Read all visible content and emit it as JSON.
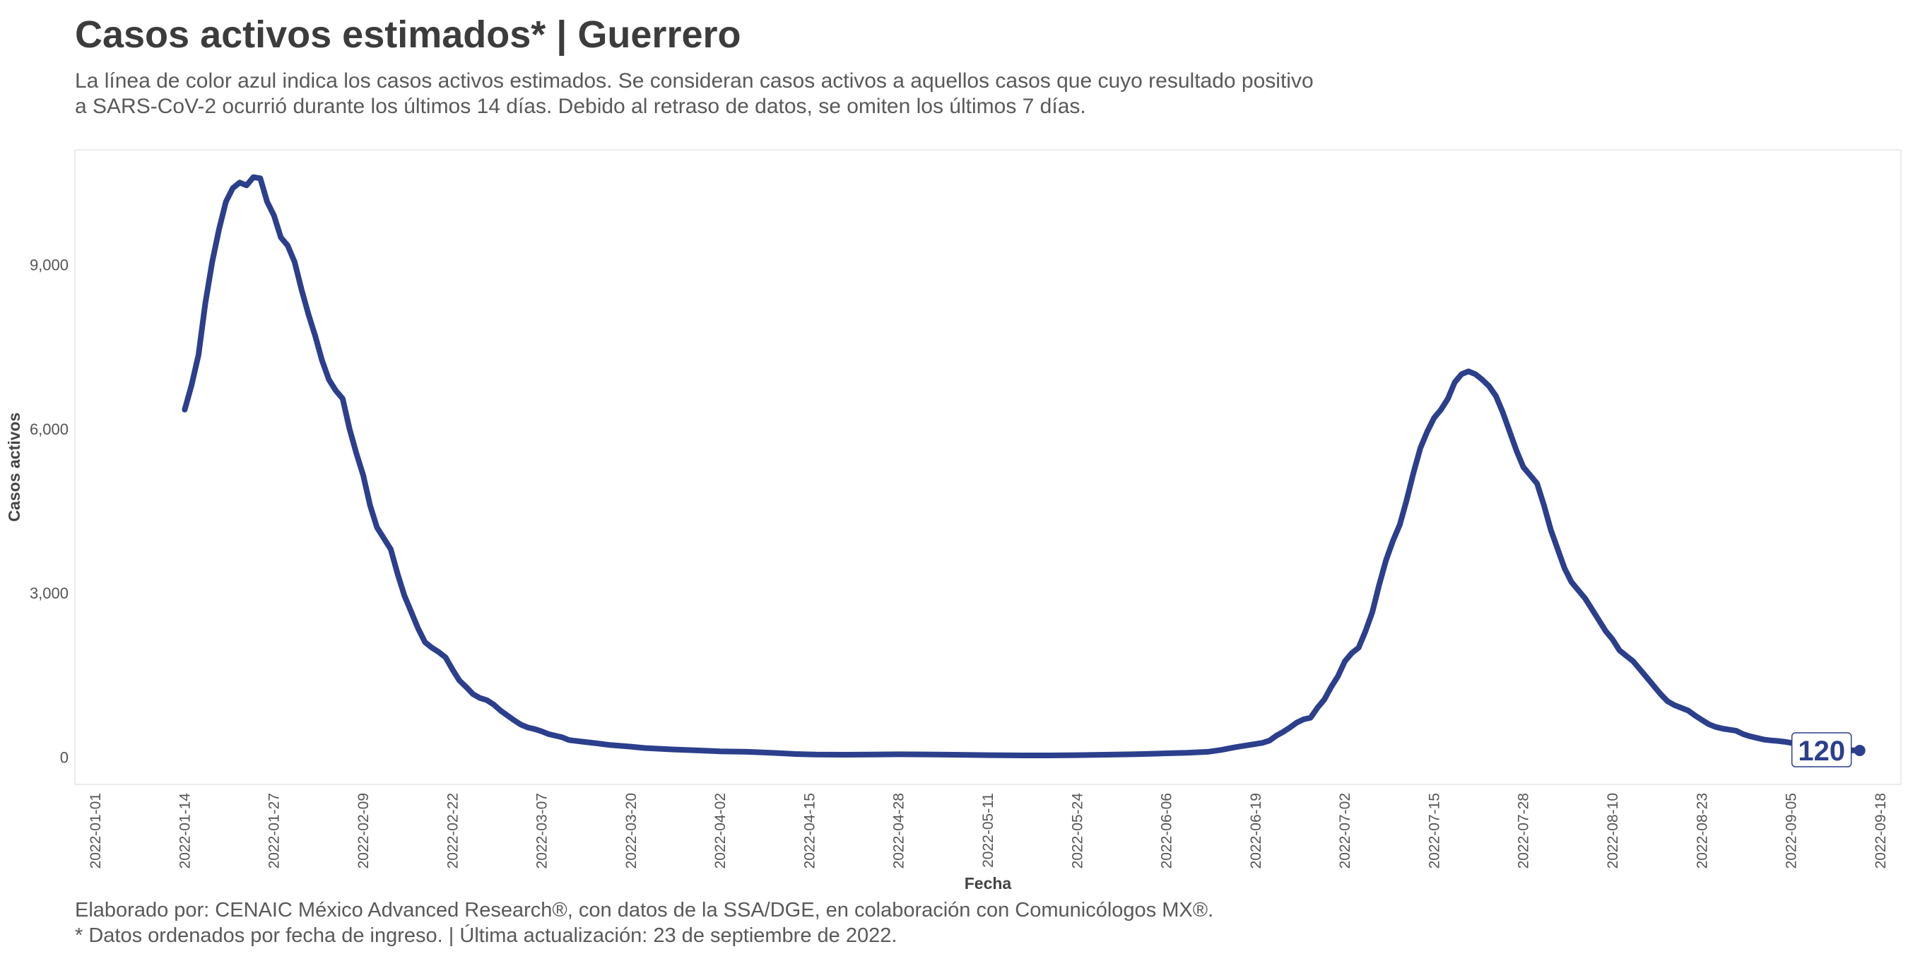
{
  "title": "Casos activos estimados* | Guerrero",
  "subtitle": [
    "La línea de color azul indica los casos activos estimados. Se consideran casos activos a aquellos casos que cuyo resultado positivo",
    "a SARS-CoV-2 ocurrió durante los últimos 14 días. Debido al retraso de datos, se omiten los últimos 7 días."
  ],
  "caption": [
    "Elaborado por: CENAIC México Advanced Research®, con datos de la SSA/DGE, en colaboración con Comunicólogos MX®.",
    "* Datos ordenados por fecha de ingreso. | Última actualización: 23 de septiembre de 2022."
  ],
  "chart_data": {
    "type": "line",
    "xlabel": "Fecha",
    "ylabel": "Casos activos",
    "x_ticks": [
      "2022-01-01",
      "2022-01-14",
      "2022-01-27",
      "2022-02-09",
      "2022-02-22",
      "2022-03-07",
      "2022-03-20",
      "2022-04-02",
      "2022-04-15",
      "2022-04-28",
      "2022-05-11",
      "2022-05-24",
      "2022-06-06",
      "2022-06-19",
      "2022-07-02",
      "2022-07-15",
      "2022-07-28",
      "2022-08-10",
      "2022-08-23",
      "2022-09-05",
      "2022-09-18"
    ],
    "y_ticks": [
      0,
      3000,
      6000,
      9000
    ],
    "y_tick_labels": [
      "0",
      "3,000",
      "6,000",
      "9,000"
    ],
    "xlim": [
      "2021-12-29",
      "2022-09-21"
    ],
    "ylim": [
      -500,
      11100
    ],
    "grid": false,
    "line_color": "#2b3f8c",
    "last_value_label": "120",
    "series": [
      {
        "points": [
          [
            "2022-01-14",
            6350
          ],
          [
            "2022-01-15",
            6800
          ],
          [
            "2022-01-16",
            7350
          ],
          [
            "2022-01-17",
            8300
          ],
          [
            "2022-01-18",
            9050
          ],
          [
            "2022-01-19",
            9650
          ],
          [
            "2022-01-20",
            10150
          ],
          [
            "2022-01-21",
            10400
          ],
          [
            "2022-01-22",
            10500
          ],
          [
            "2022-01-23",
            10450
          ],
          [
            "2022-01-24",
            10600
          ],
          [
            "2022-01-25",
            10580
          ],
          [
            "2022-01-26",
            10150
          ],
          [
            "2022-01-27",
            9900
          ],
          [
            "2022-01-28",
            9500
          ],
          [
            "2022-01-29",
            9350
          ],
          [
            "2022-01-30",
            9050
          ],
          [
            "2022-01-31",
            8550
          ],
          [
            "2022-02-01",
            8100
          ],
          [
            "2022-02-02",
            7700
          ],
          [
            "2022-02-03",
            7250
          ],
          [
            "2022-02-04",
            6900
          ],
          [
            "2022-02-05",
            6700
          ],
          [
            "2022-02-06",
            6550
          ],
          [
            "2022-02-07",
            6000
          ],
          [
            "2022-02-08",
            5550
          ],
          [
            "2022-02-09",
            5150
          ],
          [
            "2022-02-10",
            4600
          ],
          [
            "2022-02-11",
            4200
          ],
          [
            "2022-02-12",
            4000
          ],
          [
            "2022-02-13",
            3800
          ],
          [
            "2022-02-14",
            3350
          ],
          [
            "2022-02-15",
            2950
          ],
          [
            "2022-02-16",
            2650
          ],
          [
            "2022-02-17",
            2350
          ],
          [
            "2022-02-18",
            2100
          ],
          [
            "2022-02-19",
            2000
          ],
          [
            "2022-02-20",
            1920
          ],
          [
            "2022-02-21",
            1820
          ],
          [
            "2022-02-22",
            1600
          ],
          [
            "2022-02-23",
            1400
          ],
          [
            "2022-02-24",
            1280
          ],
          [
            "2022-02-25",
            1150
          ],
          [
            "2022-02-26",
            1080
          ],
          [
            "2022-02-27",
            1040
          ],
          [
            "2022-02-28",
            960
          ],
          [
            "2022-03-01",
            850
          ],
          [
            "2022-03-02",
            760
          ],
          [
            "2022-03-03",
            670
          ],
          [
            "2022-03-04",
            590
          ],
          [
            "2022-03-05",
            540
          ],
          [
            "2022-03-06",
            510
          ],
          [
            "2022-03-07",
            470
          ],
          [
            "2022-03-08",
            420
          ],
          [
            "2022-03-09",
            390
          ],
          [
            "2022-03-10",
            360
          ],
          [
            "2022-03-11",
            310
          ],
          [
            "2022-03-13",
            280
          ],
          [
            "2022-03-15",
            250
          ],
          [
            "2022-03-17",
            220
          ],
          [
            "2022-03-20",
            190
          ],
          [
            "2022-03-22",
            165
          ],
          [
            "2022-03-26",
            140
          ],
          [
            "2022-03-30",
            120
          ],
          [
            "2022-04-02",
            105
          ],
          [
            "2022-04-06",
            95
          ],
          [
            "2022-04-10",
            75
          ],
          [
            "2022-04-13",
            55
          ],
          [
            "2022-04-16",
            45
          ],
          [
            "2022-04-20",
            42
          ],
          [
            "2022-04-24",
            45
          ],
          [
            "2022-04-28",
            50
          ],
          [
            "2022-05-02",
            48
          ],
          [
            "2022-05-06",
            42
          ],
          [
            "2022-05-11",
            35
          ],
          [
            "2022-05-16",
            30
          ],
          [
            "2022-05-20",
            30
          ],
          [
            "2022-05-24",
            35
          ],
          [
            "2022-05-28",
            42
          ],
          [
            "2022-06-01",
            50
          ],
          [
            "2022-06-04",
            60
          ],
          [
            "2022-06-06",
            68
          ],
          [
            "2022-06-09",
            78
          ],
          [
            "2022-06-12",
            95
          ],
          [
            "2022-06-14",
            130
          ],
          [
            "2022-06-16",
            180
          ],
          [
            "2022-06-18",
            220
          ],
          [
            "2022-06-20",
            260
          ],
          [
            "2022-06-21",
            300
          ],
          [
            "2022-06-22",
            390
          ],
          [
            "2022-06-23",
            460
          ],
          [
            "2022-06-24",
            540
          ],
          [
            "2022-06-25",
            630
          ],
          [
            "2022-06-26",
            690
          ],
          [
            "2022-06-27",
            720
          ],
          [
            "2022-06-28",
            900
          ],
          [
            "2022-06-29",
            1050
          ],
          [
            "2022-06-30",
            1280
          ],
          [
            "2022-07-01",
            1480
          ],
          [
            "2022-07-02",
            1750
          ],
          [
            "2022-07-03",
            1900
          ],
          [
            "2022-07-04",
            2000
          ],
          [
            "2022-07-05",
            2300
          ],
          [
            "2022-07-06",
            2650
          ],
          [
            "2022-07-07",
            3150
          ],
          [
            "2022-07-08",
            3600
          ],
          [
            "2022-07-09",
            3950
          ],
          [
            "2022-07-10",
            4250
          ],
          [
            "2022-07-11",
            4700
          ],
          [
            "2022-07-12",
            5200
          ],
          [
            "2022-07-13",
            5650
          ],
          [
            "2022-07-14",
            5950
          ],
          [
            "2022-07-15",
            6200
          ],
          [
            "2022-07-16",
            6350
          ],
          [
            "2022-07-17",
            6550
          ],
          [
            "2022-07-18",
            6850
          ],
          [
            "2022-07-19",
            7000
          ],
          [
            "2022-07-20",
            7050
          ],
          [
            "2022-07-21",
            7000
          ],
          [
            "2022-07-22",
            6900
          ],
          [
            "2022-07-23",
            6780
          ],
          [
            "2022-07-24",
            6600
          ],
          [
            "2022-07-25",
            6300
          ],
          [
            "2022-07-26",
            5950
          ],
          [
            "2022-07-27",
            5600
          ],
          [
            "2022-07-28",
            5300
          ],
          [
            "2022-07-29",
            5150
          ],
          [
            "2022-07-30",
            5000
          ],
          [
            "2022-07-31",
            4600
          ],
          [
            "2022-08-01",
            4150
          ],
          [
            "2022-08-02",
            3800
          ],
          [
            "2022-08-03",
            3450
          ],
          [
            "2022-08-04",
            3200
          ],
          [
            "2022-08-05",
            3050
          ],
          [
            "2022-08-06",
            2900
          ],
          [
            "2022-08-07",
            2700
          ],
          [
            "2022-08-08",
            2500
          ],
          [
            "2022-08-09",
            2300
          ],
          [
            "2022-08-10",
            2150
          ],
          [
            "2022-08-11",
            1950
          ],
          [
            "2022-08-12",
            1850
          ],
          [
            "2022-08-13",
            1750
          ],
          [
            "2022-08-14",
            1600
          ],
          [
            "2022-08-15",
            1450
          ],
          [
            "2022-08-16",
            1300
          ],
          [
            "2022-08-17",
            1150
          ],
          [
            "2022-08-18",
            1020
          ],
          [
            "2022-08-19",
            950
          ],
          [
            "2022-08-20",
            900
          ],
          [
            "2022-08-21",
            850
          ],
          [
            "2022-08-22",
            760
          ],
          [
            "2022-08-23",
            680
          ],
          [
            "2022-08-24",
            600
          ],
          [
            "2022-08-25",
            550
          ],
          [
            "2022-08-26",
            520
          ],
          [
            "2022-08-27",
            500
          ],
          [
            "2022-08-28",
            480
          ],
          [
            "2022-08-29",
            420
          ],
          [
            "2022-08-30",
            380
          ],
          [
            "2022-08-31",
            350
          ],
          [
            "2022-09-01",
            320
          ],
          [
            "2022-09-02",
            305
          ],
          [
            "2022-09-03",
            295
          ],
          [
            "2022-09-04",
            280
          ],
          [
            "2022-09-05",
            260
          ],
          [
            "2022-09-06",
            235
          ],
          [
            "2022-09-07",
            210
          ],
          [
            "2022-09-08",
            190
          ],
          [
            "2022-09-09",
            170
          ],
          [
            "2022-09-10",
            155
          ],
          [
            "2022-09-11",
            145
          ],
          [
            "2022-09-12",
            135
          ],
          [
            "2022-09-13",
            128
          ],
          [
            "2022-09-14",
            122
          ],
          [
            "2022-09-15",
            120
          ]
        ]
      }
    ]
  }
}
